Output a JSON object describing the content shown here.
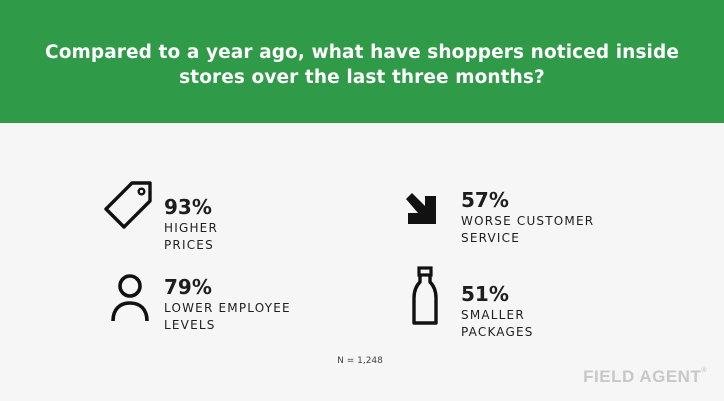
{
  "title": "Compared to a year ago, what have shoppers noticed inside stores over the last three months?",
  "footnote": "N = 1,248",
  "logo": "FIELD AGENT",
  "logo_mark": "®",
  "colors": {
    "header_bg": "#2f9a48",
    "page_bg": "#f6f6f6",
    "text": "#1e1e1e"
  },
  "chart_data": {
    "type": "table",
    "title": "Compared to a year ago, what have shoppers noticed inside stores over the last three months?",
    "items": [
      {
        "label": "HIGHER PRICES",
        "percent": "93%",
        "value": 93,
        "icon": "price-tag-icon"
      },
      {
        "label": "WORSE CUSTOMER SERVICE",
        "percent": "57%",
        "value": 57,
        "icon": "arrow-down-right-icon"
      },
      {
        "label": "LOWER EMPLOYEE LEVELS",
        "percent": "79%",
        "value": 79,
        "icon": "person-icon"
      },
      {
        "label": "SMALLER PACKAGES",
        "percent": "51%",
        "value": 51,
        "icon": "bottle-icon"
      }
    ],
    "sample_size": "N = 1,248"
  }
}
